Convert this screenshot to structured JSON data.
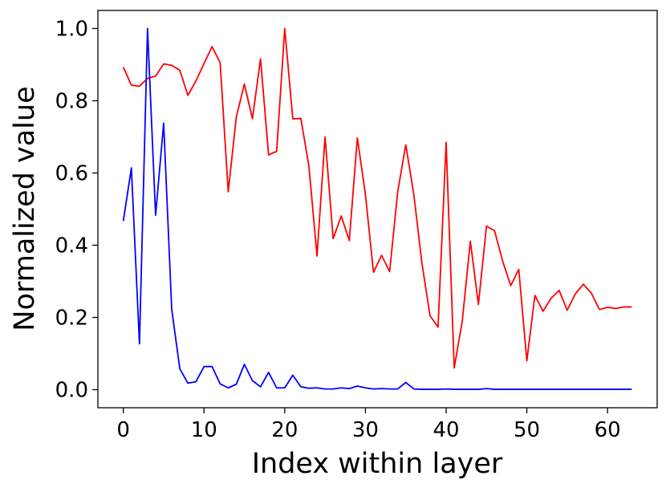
{
  "chart_data": {
    "type": "line",
    "title": "",
    "xlabel": "Index within layer",
    "ylabel": "Normalized value",
    "xlim": [
      -3.15,
      66.15
    ],
    "ylim": [
      -0.05,
      1.05
    ],
    "xticks": [
      0,
      10,
      20,
      30,
      40,
      50,
      60
    ],
    "xtick_labels": [
      "0",
      "10",
      "20",
      "30",
      "40",
      "50",
      "60"
    ],
    "yticks": [
      0.0,
      0.2,
      0.4,
      0.6,
      0.8,
      1.0
    ],
    "ytick_labels": [
      "0.0",
      "0.2",
      "0.4",
      "0.6",
      "0.8",
      "1.0"
    ],
    "grid": false,
    "legend": "none",
    "x": [
      0,
      1,
      2,
      3,
      4,
      5,
      6,
      7,
      8,
      9,
      10,
      11,
      12,
      13,
      14,
      15,
      16,
      17,
      18,
      19,
      20,
      21,
      22,
      23,
      24,
      25,
      26,
      27,
      28,
      29,
      30,
      31,
      32,
      33,
      34,
      35,
      36,
      37,
      38,
      39,
      40,
      41,
      42,
      43,
      44,
      45,
      46,
      47,
      48,
      49,
      50,
      51,
      52,
      53,
      54,
      55,
      56,
      57,
      58,
      59,
      60,
      61,
      62,
      63
    ],
    "series": [
      {
        "color": "#ff0000",
        "values": [
          0.893,
          0.843,
          0.84,
          0.862,
          0.868,
          0.902,
          0.898,
          0.884,
          0.815,
          0.855,
          0.903,
          0.95,
          0.905,
          0.548,
          0.755,
          0.846,
          0.75,
          0.916,
          0.65,
          0.66,
          1.0,
          0.75,
          0.751,
          0.618,
          0.37,
          0.7,
          0.418,
          0.481,
          0.413,
          0.697,
          0.54,
          0.325,
          0.372,
          0.327,
          0.548,
          0.678,
          0.54,
          0.35,
          0.205,
          0.173,
          0.685,
          0.06,
          0.19,
          0.411,
          0.236,
          0.453,
          0.44,
          0.356,
          0.288,
          0.333,
          0.08,
          0.261,
          0.217,
          0.253,
          0.275,
          0.22,
          0.265,
          0.292,
          0.267,
          0.222,
          0.228,
          0.225,
          0.229,
          0.229
        ]
      },
      {
        "color": "#0000ff",
        "values": [
          0.467,
          0.614,
          0.127,
          1.0,
          0.483,
          0.738,
          0.222,
          0.058,
          0.018,
          0.022,
          0.064,
          0.064,
          0.016,
          0.005,
          0.015,
          0.07,
          0.025,
          0.008,
          0.048,
          0.005,
          0.005,
          0.04,
          0.008,
          0.004,
          0.005,
          0.002,
          0.002,
          0.005,
          0.003,
          0.01,
          0.005,
          0.002,
          0.003,
          0.002,
          0.002,
          0.02,
          0.002,
          0.001,
          0.001,
          0.001,
          0.002,
          0.001,
          0.001,
          0.001,
          0.001,
          0.003,
          0.001,
          0.001,
          0.001,
          0.001,
          0.001,
          0.001,
          0.001,
          0.001,
          0.001,
          0.001,
          0.001,
          0.001,
          0.001,
          0.001,
          0.001,
          0.001,
          0.001,
          0.001
        ]
      }
    ]
  }
}
